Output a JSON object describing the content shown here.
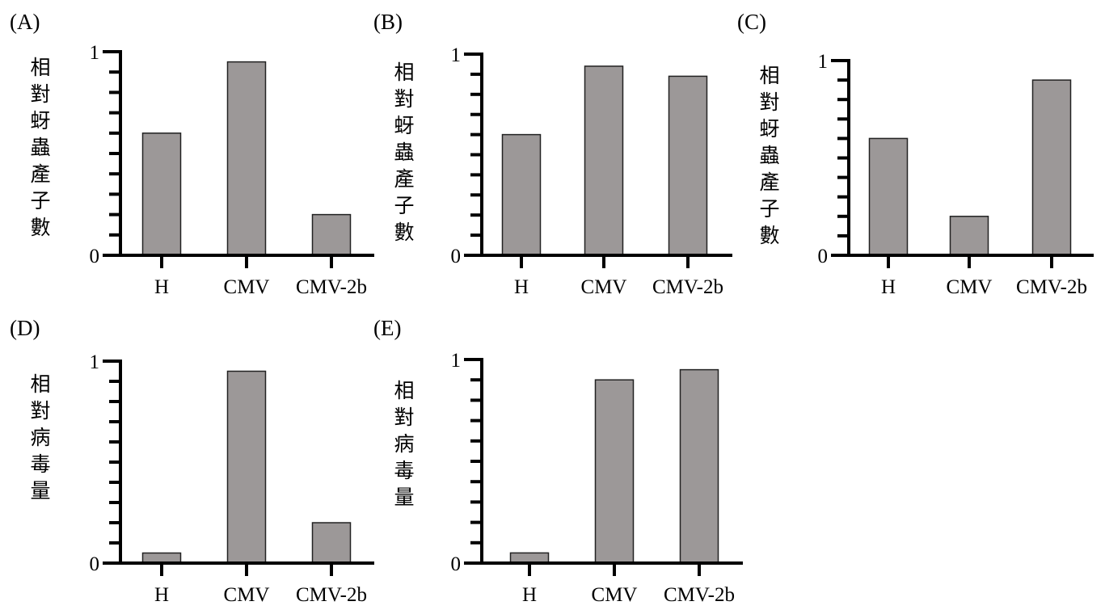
{
  "colors": {
    "bar_fill": "#9c9898",
    "bar_stroke": "#222222",
    "axis": "#000000"
  },
  "chart_data": [
    {
      "panel": "(A)",
      "type": "bar",
      "ylabel": "相對蚜蟲產子數",
      "categories": [
        "H",
        "CMV",
        "CMV-2b"
      ],
      "values": [
        0.6,
        0.95,
        0.2
      ],
      "ylim": [
        0,
        1
      ],
      "yticks": [
        "0",
        "1"
      ],
      "grid": false
    },
    {
      "panel": "(B)",
      "type": "bar",
      "ylabel": "相對蚜蟲產子數",
      "categories": [
        "H",
        "CMV",
        "CMV-2b"
      ],
      "values": [
        0.6,
        0.94,
        0.89
      ],
      "ylim": [
        0,
        1
      ],
      "yticks": [
        "0",
        "1"
      ],
      "grid": false
    },
    {
      "panel": "(C)",
      "type": "bar",
      "ylabel": "相對蚜蟲產子數",
      "categories": [
        "H",
        "CMV",
        "CMV-2b"
      ],
      "values": [
        0.6,
        0.2,
        0.9
      ],
      "ylim": [
        0,
        1
      ],
      "yticks": [
        "0",
        "1"
      ],
      "grid": false
    },
    {
      "panel": "(D)",
      "type": "bar",
      "ylabel": "相對病毒量",
      "categories": [
        "H",
        "CMV",
        "CMV-2b"
      ],
      "values": [
        0.05,
        0.95,
        0.2
      ],
      "ylim": [
        0,
        1
      ],
      "yticks": [
        "0",
        "1"
      ],
      "grid": false
    },
    {
      "panel": "(E)",
      "type": "bar",
      "ylabel": "相對病毒量",
      "categories": [
        "H",
        "CMV",
        "CMV-2b"
      ],
      "values": [
        0.05,
        0.9,
        0.95
      ],
      "ylim": [
        0,
        1
      ],
      "yticks": [
        "0",
        "1"
      ],
      "grid": false
    }
  ]
}
